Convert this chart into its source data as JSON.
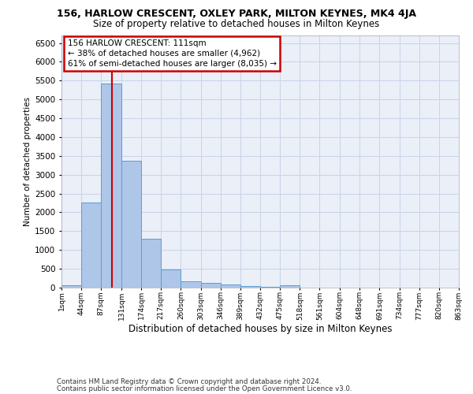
{
  "title1": "156, HARLOW CRESCENT, OXLEY PARK, MILTON KEYNES, MK4 4JA",
  "title2": "Size of property relative to detached houses in Milton Keynes",
  "xlabel": "Distribution of detached houses by size in Milton Keynes",
  "ylabel": "Number of detached properties",
  "footer1": "Contains HM Land Registry data © Crown copyright and database right 2024.",
  "footer2": "Contains public sector information licensed under the Open Government Licence v3.0.",
  "bar_edges": [
    1,
    44,
    87,
    131,
    174,
    217,
    260,
    303,
    346,
    389,
    432,
    475,
    518,
    561,
    604,
    648,
    691,
    734,
    777,
    820,
    863
  ],
  "bar_values": [
    70,
    2270,
    5430,
    3380,
    1290,
    490,
    175,
    120,
    80,
    50,
    30,
    65,
    0,
    0,
    0,
    0,
    0,
    0,
    0,
    0
  ],
  "bar_color": "#aec6e8",
  "bar_edge_color": "#5a9fd4",
  "grid_color": "#c8d4e8",
  "background_color": "#eaeff8",
  "vline_x": 111,
  "vline_color": "#cc0000",
  "annotation_line1": "156 HARLOW CRESCENT: 111sqm",
  "annotation_line2": "← 38% of detached houses are smaller (4,962)",
  "annotation_line3": "61% of semi-detached houses are larger (8,035) →",
  "annotation_box_color": "#cc0000",
  "ylim": [
    0,
    6700
  ],
  "yticks": [
    0,
    500,
    1000,
    1500,
    2000,
    2500,
    3000,
    3500,
    4000,
    4500,
    5000,
    5500,
    6000,
    6500
  ],
  "xtick_labels": [
    "1sqm",
    "44sqm",
    "87sqm",
    "131sqm",
    "174sqm",
    "217sqm",
    "260sqm",
    "303sqm",
    "346sqm",
    "389sqm",
    "432sqm",
    "475sqm",
    "518sqm",
    "561sqm",
    "604sqm",
    "648sqm",
    "691sqm",
    "734sqm",
    "777sqm",
    "820sqm",
    "863sqm"
  ],
  "title1_fontsize": 9,
  "title2_fontsize": 8.5,
  "xlabel_fontsize": 8.5,
  "ylabel_fontsize": 7.5,
  "ytick_fontsize": 7.5,
  "xtick_fontsize": 6.5,
  "annotation_fontsize": 7.5,
  "footer_fontsize": 6.2
}
